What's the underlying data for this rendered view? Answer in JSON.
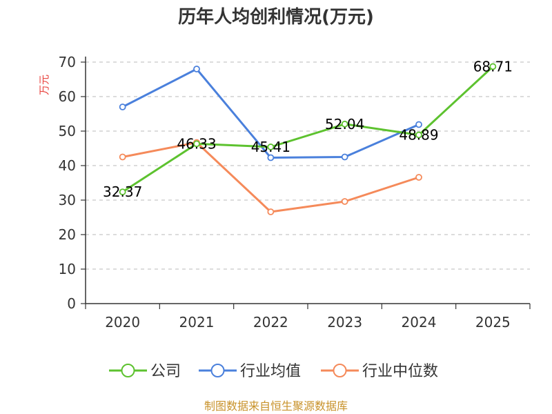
{
  "chart_data": {
    "type": "line",
    "title": "历年人均创利情况(万元)",
    "ylabel": "万元",
    "xlabel": "",
    "categories": [
      "2020",
      "2021",
      "2022",
      "2023",
      "2024",
      "2025"
    ],
    "yticks": [
      0,
      10,
      20,
      30,
      40,
      50,
      60,
      70
    ],
    "ylim": [
      0,
      70
    ],
    "grid": true,
    "legend_position": "bottom",
    "series": [
      {
        "name": "公司",
        "color": "#5dc22f",
        "values": [
          32.37,
          46.33,
          45.41,
          52.04,
          48.89,
          68.71
        ],
        "labels": [
          "32.37",
          "46.33",
          "45.41",
          "52.04",
          "48.89",
          "68.71"
        ]
      },
      {
        "name": "行业均值",
        "color": "#4a80dc",
        "values": [
          57,
          68,
          42.3,
          42.5,
          51.9,
          null
        ]
      },
      {
        "name": "行业中位数",
        "color": "#f58a5a",
        "values": [
          42.5,
          46.7,
          26.6,
          29.6,
          36.6,
          null
        ]
      }
    ]
  },
  "source_text": "制图数据来自恒生聚源数据库"
}
